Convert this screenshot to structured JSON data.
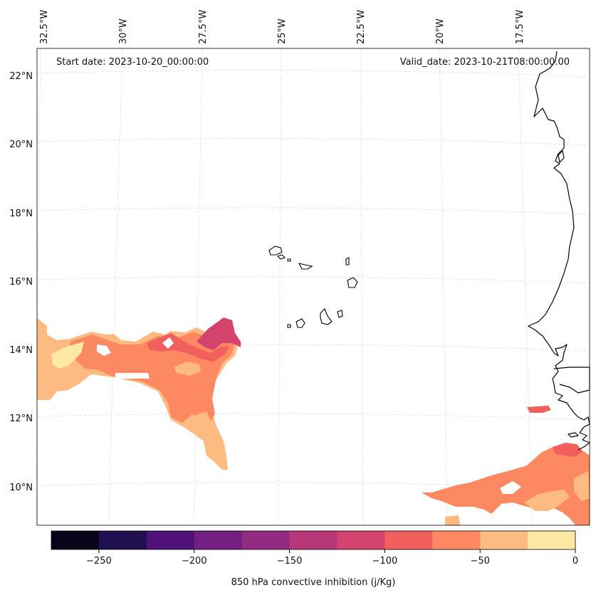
{
  "header": {
    "start_date": "Start date: 2023-10-20_00:00:00",
    "valid_date": "Valid_date: 2023-10-21T08:00:00.00"
  },
  "axes": {
    "lon_labels": [
      "32.5°W",
      "30°W",
      "27.5°W",
      "25°W",
      "22.5°W",
      "20°W",
      "17.5°W"
    ],
    "lat_labels": [
      "22°N",
      "20°N",
      "18°N",
      "16°N",
      "14°N",
      "12°N",
      "10°N"
    ]
  },
  "colorbar": {
    "label": "850 hPa convective inhibition (j/Kg)",
    "ticks": [
      "−250",
      "−200",
      "−150",
      "−100",
      "−50",
      "0"
    ],
    "range": [
      -275,
      0
    ],
    "colors": [
      "#06051a",
      "#221150",
      "#4f127b",
      "#721f81",
      "#932b80",
      "#b73779",
      "#d3436e",
      "#f1605d",
      "#fc8961",
      "#febb81",
      "#fde8a5"
    ]
  },
  "chart_data": {
    "type": "filled_contour_map",
    "variable": "850 hPa convective inhibition",
    "units": "j/Kg",
    "levels": [
      -275,
      -250,
      -225,
      -200,
      -175,
      -150,
      -125,
      -100,
      -75,
      -50,
      -25,
      0
    ],
    "extent": {
      "lon": [
        -33,
        -16
      ],
      "lat": [
        9,
        22.7
      ]
    }
  }
}
